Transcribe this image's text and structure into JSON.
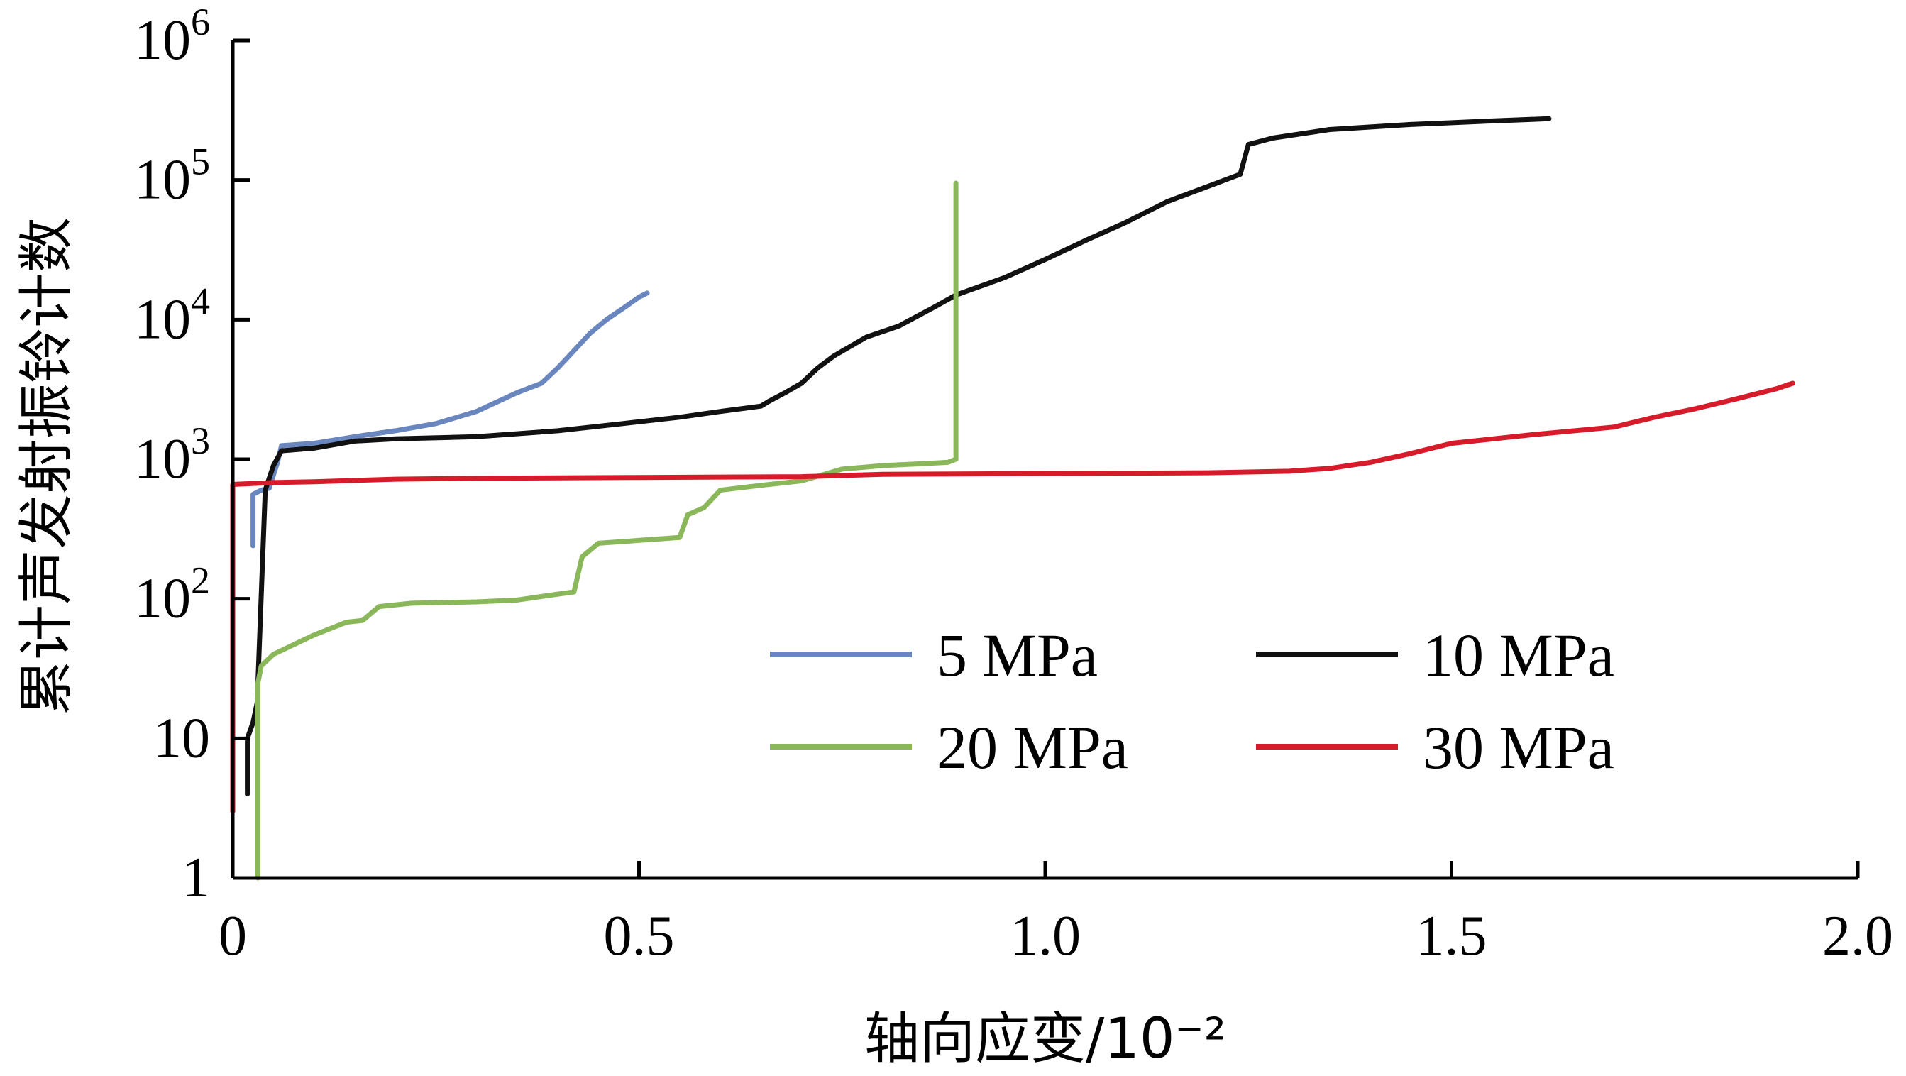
{
  "chart_data": {
    "type": "line",
    "xlabel": "轴向应变/10⁻²",
    "ylabel": "累计声发射振铃计数",
    "xlim": [
      0,
      2.0
    ],
    "ylim": [
      1,
      1000000
    ],
    "y_scale": "log",
    "grid": false,
    "legend_position": "bottom-right",
    "x_ticks": [
      "0",
      "0.5",
      "1.0",
      "1.5",
      "2.0"
    ],
    "x_tick_values": [
      0,
      0.5,
      1.0,
      1.5,
      2.0
    ],
    "y_ticks": [
      {
        "base": "1",
        "exp": "",
        "value": 1
      },
      {
        "base": "10",
        "exp": "",
        "value": 10
      },
      {
        "base": "10",
        "exp": "2",
        "value": 100
      },
      {
        "base": "10",
        "exp": "3",
        "value": 1000
      },
      {
        "base": "10",
        "exp": "4",
        "value": 10000
      },
      {
        "base": "10",
        "exp": "5",
        "value": 100000
      },
      {
        "base": "10",
        "exp": "6",
        "value": 1000000
      }
    ],
    "series": [
      {
        "name": "5 MPa",
        "color": "#6a86bf",
        "points": [
          [
            0.025,
            240
          ],
          [
            0.025,
            560
          ],
          [
            0.035,
            600
          ],
          [
            0.045,
            620
          ],
          [
            0.055,
            950
          ],
          [
            0.06,
            1250
          ],
          [
            0.1,
            1300
          ],
          [
            0.15,
            1450
          ],
          [
            0.2,
            1600
          ],
          [
            0.25,
            1800
          ],
          [
            0.3,
            2200
          ],
          [
            0.35,
            3000
          ],
          [
            0.38,
            3500
          ],
          [
            0.4,
            4500
          ],
          [
            0.42,
            6000
          ],
          [
            0.44,
            8000
          ],
          [
            0.46,
            10000
          ],
          [
            0.48,
            12000
          ],
          [
            0.5,
            14500
          ],
          [
            0.51,
            15500
          ]
        ]
      },
      {
        "name": "10 MPa",
        "color": "#111111",
        "points": [
          [
            0.018,
            4
          ],
          [
            0.018,
            10
          ],
          [
            0.025,
            13
          ],
          [
            0.03,
            18
          ],
          [
            0.04,
            600
          ],
          [
            0.05,
            900
          ],
          [
            0.06,
            1150
          ],
          [
            0.1,
            1200
          ],
          [
            0.15,
            1350
          ],
          [
            0.2,
            1400
          ],
          [
            0.3,
            1450
          ],
          [
            0.4,
            1600
          ],
          [
            0.48,
            1800
          ],
          [
            0.55,
            2000
          ],
          [
            0.6,
            2200
          ],
          [
            0.65,
            2400
          ],
          [
            0.66,
            2600
          ],
          [
            0.68,
            3000
          ],
          [
            0.7,
            3500
          ],
          [
            0.72,
            4500
          ],
          [
            0.74,
            5500
          ],
          [
            0.78,
            7500
          ],
          [
            0.82,
            9000
          ],
          [
            0.86,
            12000
          ],
          [
            0.89,
            15000
          ],
          [
            0.95,
            20000
          ],
          [
            1.0,
            27000
          ],
          [
            1.05,
            37000
          ],
          [
            1.1,
            50000
          ],
          [
            1.15,
            70000
          ],
          [
            1.2,
            90000
          ],
          [
            1.24,
            110000
          ],
          [
            1.25,
            180000
          ],
          [
            1.28,
            200000
          ],
          [
            1.35,
            230000
          ],
          [
            1.45,
            250000
          ],
          [
            1.55,
            265000
          ],
          [
            1.62,
            275000
          ]
        ]
      },
      {
        "name": "20 MPa",
        "color": "#8ab75a",
        "points": [
          [
            0.031,
            1
          ],
          [
            0.031,
            25
          ],
          [
            0.035,
            33
          ],
          [
            0.05,
            40
          ],
          [
            0.1,
            55
          ],
          [
            0.14,
            68
          ],
          [
            0.16,
            70
          ],
          [
            0.18,
            88
          ],
          [
            0.22,
            93
          ],
          [
            0.3,
            95
          ],
          [
            0.35,
            98
          ],
          [
            0.4,
            108
          ],
          [
            0.42,
            112
          ],
          [
            0.43,
            200
          ],
          [
            0.45,
            250
          ],
          [
            0.55,
            275
          ],
          [
            0.56,
            400
          ],
          [
            0.58,
            450
          ],
          [
            0.6,
            600
          ],
          [
            0.65,
            650
          ],
          [
            0.7,
            700
          ],
          [
            0.75,
            850
          ],
          [
            0.8,
            900
          ],
          [
            0.88,
            950
          ],
          [
            0.89,
            1000
          ],
          [
            0.89,
            95000
          ]
        ]
      },
      {
        "name": "30 MPa",
        "color": "#d61c2a",
        "points": [
          [
            0.0,
            3
          ],
          [
            0.0,
            660
          ],
          [
            0.05,
            680
          ],
          [
            0.1,
            690
          ],
          [
            0.2,
            720
          ],
          [
            0.3,
            730
          ],
          [
            0.5,
            740
          ],
          [
            0.7,
            750
          ],
          [
            0.8,
            780
          ],
          [
            1.0,
            790
          ],
          [
            1.2,
            800
          ],
          [
            1.3,
            820
          ],
          [
            1.35,
            860
          ],
          [
            1.4,
            950
          ],
          [
            1.45,
            1100
          ],
          [
            1.5,
            1300
          ],
          [
            1.6,
            1500
          ],
          [
            1.7,
            1700
          ],
          [
            1.75,
            2000
          ],
          [
            1.8,
            2300
          ],
          [
            1.85,
            2700
          ],
          [
            1.9,
            3200
          ],
          [
            1.92,
            3500
          ]
        ]
      }
    ]
  }
}
